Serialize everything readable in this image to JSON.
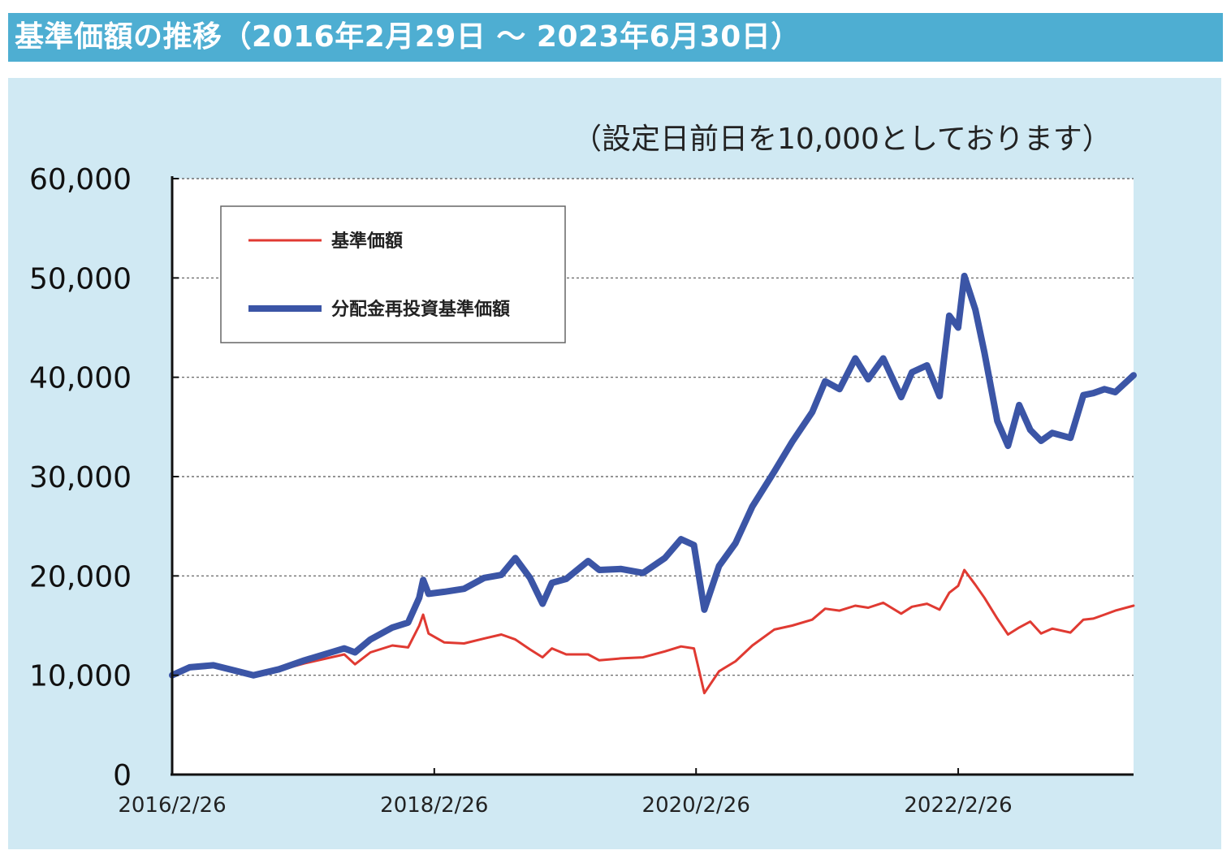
{
  "header": {
    "title": "基準価額の推移（2016年2月29日 ～ 2023年6月30日）"
  },
  "chart_data": {
    "type": "line",
    "note": "（設定日前日を10,000としております）",
    "title": "",
    "xlabel": "",
    "ylabel": "",
    "ylim": [
      0,
      60000
    ],
    "yticks": [
      0,
      10000,
      20000,
      30000,
      40000,
      50000,
      60000
    ],
    "ytick_labels": [
      "0",
      "10,000",
      "20,000",
      "30,000",
      "40,000",
      "50,000",
      "60,000"
    ],
    "xticks": [
      "2016-02-26",
      "2018-02-26",
      "2020-02-26",
      "2022-02-26"
    ],
    "xtick_labels": [
      "2016/2/26",
      "2018/2/26",
      "2020/2/26",
      "2022/2/26"
    ],
    "xlim": [
      "2016-02-26",
      "2023-06-30"
    ],
    "grid": true,
    "legend_position": "top-left",
    "colors": {
      "nav": "#e03a32",
      "reinvested": "#3b55a6"
    },
    "series": [
      {
        "name": "基準価額",
        "color": "#e03a32",
        "points": [
          [
            "2016-02-26",
            10000
          ],
          [
            "2016-04-15",
            10700
          ],
          [
            "2016-06-20",
            10900
          ],
          [
            "2016-08-15",
            10500
          ],
          [
            "2016-10-10",
            10000
          ],
          [
            "2016-12-20",
            10500
          ],
          [
            "2017-03-01",
            11200
          ],
          [
            "2017-06-20",
            12100
          ],
          [
            "2017-07-20",
            11100
          ],
          [
            "2017-09-01",
            12300
          ],
          [
            "2017-11-01",
            13000
          ],
          [
            "2017-12-15",
            12800
          ],
          [
            "2018-01-15",
            15000
          ],
          [
            "2018-01-26",
            16100
          ],
          [
            "2018-02-10",
            14200
          ],
          [
            "2018-03-26",
            13300
          ],
          [
            "2018-05-20",
            13200
          ],
          [
            "2018-07-15",
            13700
          ],
          [
            "2018-09-01",
            14100
          ],
          [
            "2018-10-10",
            13600
          ],
          [
            "2018-11-20",
            12600
          ],
          [
            "2018-12-25",
            11800
          ],
          [
            "2019-01-20",
            12700
          ],
          [
            "2019-03-01",
            12100
          ],
          [
            "2019-05-01",
            12100
          ],
          [
            "2019-06-01",
            11500
          ],
          [
            "2019-08-01",
            11700
          ],
          [
            "2019-10-01",
            11800
          ],
          [
            "2019-12-01",
            12400
          ],
          [
            "2020-01-15",
            12900
          ],
          [
            "2020-02-20",
            12700
          ],
          [
            "2020-03-20",
            8200
          ],
          [
            "2020-04-30",
            10400
          ],
          [
            "2020-06-15",
            11400
          ],
          [
            "2020-08-01",
            13000
          ],
          [
            "2020-10-01",
            14600
          ],
          [
            "2020-11-20",
            15000
          ],
          [
            "2021-01-15",
            15600
          ],
          [
            "2021-02-20",
            16700
          ],
          [
            "2021-04-01",
            16500
          ],
          [
            "2021-05-15",
            17000
          ],
          [
            "2021-06-20",
            16800
          ],
          [
            "2021-08-01",
            17300
          ],
          [
            "2021-09-20",
            16200
          ],
          [
            "2021-10-20",
            16900
          ],
          [
            "2021-12-01",
            17200
          ],
          [
            "2022-01-05",
            16600
          ],
          [
            "2022-02-01",
            18300
          ],
          [
            "2022-02-26",
            19000
          ],
          [
            "2022-03-15",
            20600
          ],
          [
            "2022-04-15",
            19100
          ],
          [
            "2022-05-10",
            17800
          ],
          [
            "2022-06-15",
            15700
          ],
          [
            "2022-07-15",
            14100
          ],
          [
            "2022-08-15",
            14800
          ],
          [
            "2022-09-15",
            15400
          ],
          [
            "2022-10-15",
            14200
          ],
          [
            "2022-11-15",
            14700
          ],
          [
            "2023-01-05",
            14300
          ],
          [
            "2023-02-10",
            15600
          ],
          [
            "2023-03-10",
            15700
          ],
          [
            "2023-04-10",
            16100
          ],
          [
            "2023-05-10",
            16500
          ],
          [
            "2023-06-30",
            17000
          ]
        ]
      },
      {
        "name": "分配金再投資基準価額",
        "color": "#3b55a6",
        "points": [
          [
            "2016-02-26",
            10000
          ],
          [
            "2016-04-15",
            10800
          ],
          [
            "2016-06-20",
            11000
          ],
          [
            "2016-08-15",
            10500
          ],
          [
            "2016-10-10",
            10000
          ],
          [
            "2016-12-20",
            10600
          ],
          [
            "2017-03-01",
            11500
          ],
          [
            "2017-06-20",
            12700
          ],
          [
            "2017-07-20",
            12300
          ],
          [
            "2017-09-01",
            13600
          ],
          [
            "2017-11-01",
            14800
          ],
          [
            "2017-12-15",
            15300
          ],
          [
            "2018-01-15",
            17800
          ],
          [
            "2018-01-26",
            19600
          ],
          [
            "2018-02-10",
            18200
          ],
          [
            "2018-03-26",
            18400
          ],
          [
            "2018-05-20",
            18700
          ],
          [
            "2018-07-15",
            19800
          ],
          [
            "2018-09-01",
            20100
          ],
          [
            "2018-10-10",
            21800
          ],
          [
            "2018-11-20",
            19800
          ],
          [
            "2018-12-25",
            17200
          ],
          [
            "2019-01-20",
            19300
          ],
          [
            "2019-03-01",
            19700
          ],
          [
            "2019-05-01",
            21500
          ],
          [
            "2019-06-01",
            20600
          ],
          [
            "2019-08-01",
            20700
          ],
          [
            "2019-10-01",
            20300
          ],
          [
            "2019-12-01",
            21800
          ],
          [
            "2020-01-15",
            23700
          ],
          [
            "2020-02-20",
            23100
          ],
          [
            "2020-03-20",
            16600
          ],
          [
            "2020-04-30",
            21000
          ],
          [
            "2020-06-15",
            23300
          ],
          [
            "2020-08-01",
            27000
          ],
          [
            "2020-10-01",
            30500
          ],
          [
            "2020-11-20",
            33500
          ],
          [
            "2021-01-15",
            36500
          ],
          [
            "2021-02-20",
            39600
          ],
          [
            "2021-04-01",
            38800
          ],
          [
            "2021-05-15",
            41900
          ],
          [
            "2021-06-20",
            39800
          ],
          [
            "2021-08-01",
            41900
          ],
          [
            "2021-09-20",
            38000
          ],
          [
            "2021-10-20",
            40500
          ],
          [
            "2021-12-01",
            41200
          ],
          [
            "2022-01-05",
            38100
          ],
          [
            "2022-02-01",
            46200
          ],
          [
            "2022-02-26",
            45000
          ],
          [
            "2022-03-15",
            50200
          ],
          [
            "2022-04-15",
            46800
          ],
          [
            "2022-05-10",
            42500
          ],
          [
            "2022-06-15",
            35600
          ],
          [
            "2022-07-15",
            33100
          ],
          [
            "2022-08-15",
            37200
          ],
          [
            "2022-09-15",
            34700
          ],
          [
            "2022-10-15",
            33600
          ],
          [
            "2022-11-15",
            34400
          ],
          [
            "2023-01-05",
            33900
          ],
          [
            "2023-02-10",
            38200
          ],
          [
            "2023-03-10",
            38400
          ],
          [
            "2023-04-10",
            38800
          ],
          [
            "2023-05-10",
            38500
          ],
          [
            "2023-06-30",
            40200
          ]
        ]
      }
    ]
  }
}
